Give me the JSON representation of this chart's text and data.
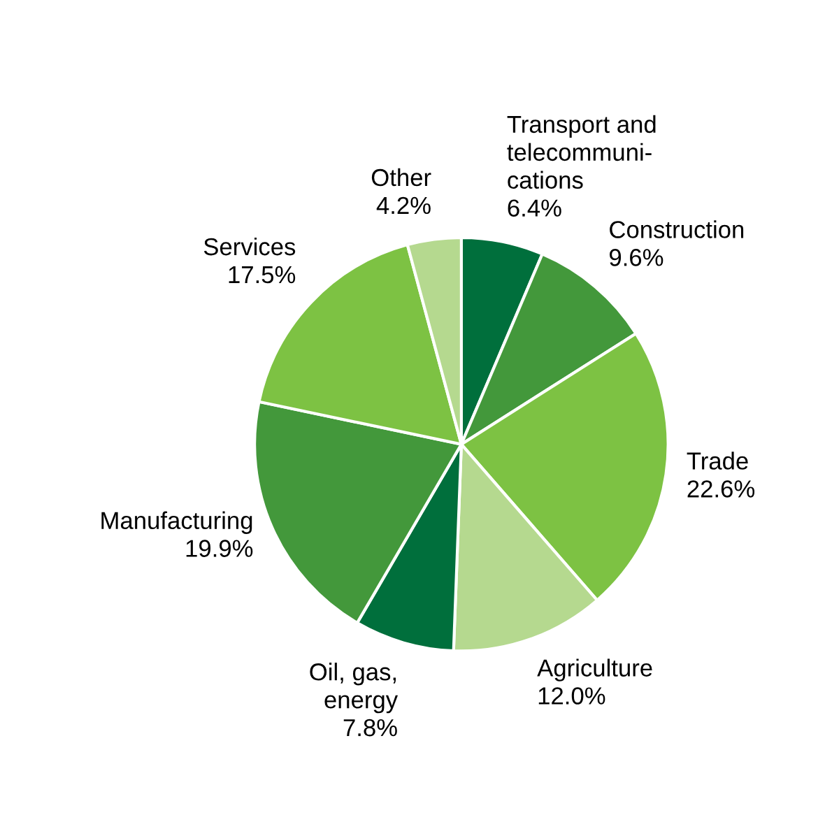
{
  "chart_data": {
    "type": "pie",
    "categories": [
      "Transport and\ntelecommuni-\ncations",
      "Construction",
      "Trade",
      "Agriculture",
      "Oil, gas,\nenergy",
      "Manufacturing",
      "Services",
      "Other"
    ],
    "values": [
      6.4,
      9.6,
      22.6,
      12.0,
      7.8,
      19.9,
      17.5,
      4.2
    ],
    "value_labels": [
      "6.4%",
      "9.6%",
      "22.6%",
      "12.0%",
      "7.8%",
      "19.9%",
      "17.5%",
      "4.2%"
    ],
    "colors": [
      "#006f3c",
      "#43983b",
      "#7dc243",
      "#b5d98f",
      "#006f3c",
      "#43983b",
      "#7dc243",
      "#b5d98f"
    ]
  }
}
